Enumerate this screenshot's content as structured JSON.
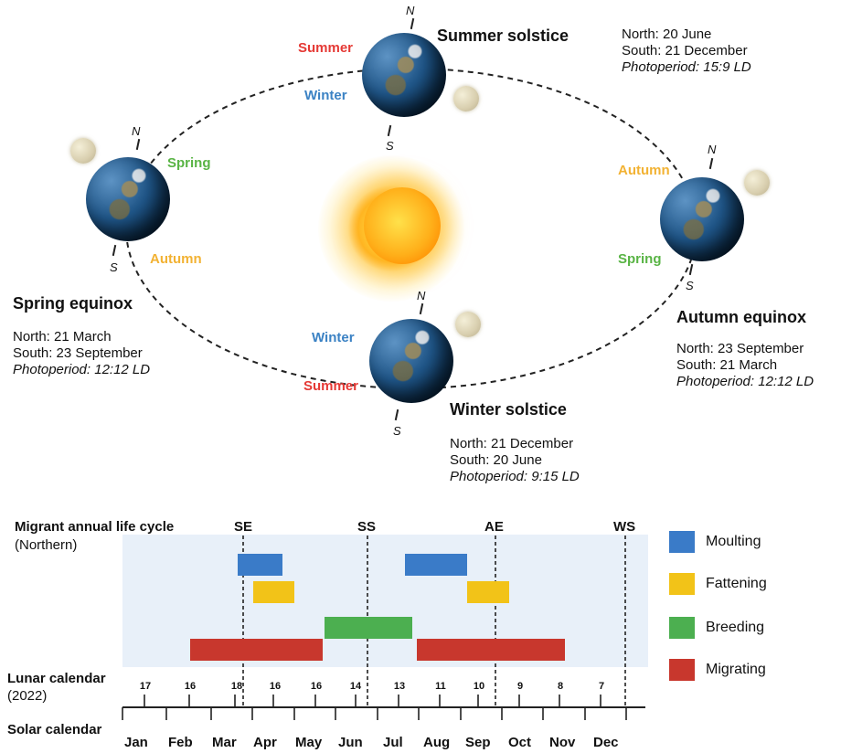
{
  "diagram": {
    "events": {
      "summer_solstice": {
        "title": "Summer solstice",
        "north": "North: 20 June",
        "south": "South: 21 December",
        "photoperiod": "Photoperiod: 15:9 LD"
      },
      "spring_equinox": {
        "title": "Spring equinox",
        "north": "North: 21 March",
        "south": "South: 23 September",
        "photoperiod": "Photoperiod: 12:12 LD"
      },
      "autumn_equinox": {
        "title": "Autumn equinox",
        "north": "North: 23 September",
        "south": "South: 21 March",
        "photoperiod": "Photoperiod: 12:12 LD"
      },
      "winter_solstice": {
        "title": "Winter solstice",
        "north": "North: 21 December",
        "south": "South: 20 June",
        "photoperiod": "Photoperiod: 9:15 LD"
      }
    },
    "seasons": {
      "top_summer": "Summer",
      "top_winter": "Winter",
      "left_spring": "Spring",
      "left_autumn": "Autumn",
      "right_autumn": "Autumn",
      "right_spring": "Spring",
      "bottom_winter": "Winter",
      "bottom_summer": "Summer"
    },
    "poles": {
      "north": "N",
      "south": "S"
    },
    "colors": {
      "summer": "#e53935",
      "winter": "#3b82c4",
      "spring": "#59b445",
      "autumn": "#f2b233"
    }
  },
  "timeline": {
    "title": "Migrant annual life cycle",
    "subtitle": "(Northern)",
    "lunar_label": "Lunar calendar",
    "lunar_year": "(2022)",
    "solar_label": "Solar calendar",
    "markers": [
      "SE",
      "SS",
      "AE",
      "WS"
    ],
    "lunar_days": [
      "17",
      "16",
      "18",
      "16",
      "16",
      "14",
      "13",
      "11",
      "10",
      "9",
      "8",
      "7"
    ],
    "months": [
      "Jan",
      "Feb",
      "Mar",
      "Apr",
      "May",
      "Jun",
      "Jul",
      "Aug",
      "Sep",
      "Oct",
      "Nov",
      "Dec"
    ],
    "legend": [
      {
        "label": "Moulting",
        "color": "#3a7bc8"
      },
      {
        "label": "Fattening",
        "color": "#f2c318"
      },
      {
        "label": "Breeding",
        "color": "#4caf50"
      },
      {
        "label": "Migrating",
        "color": "#c8372d"
      }
    ]
  }
}
